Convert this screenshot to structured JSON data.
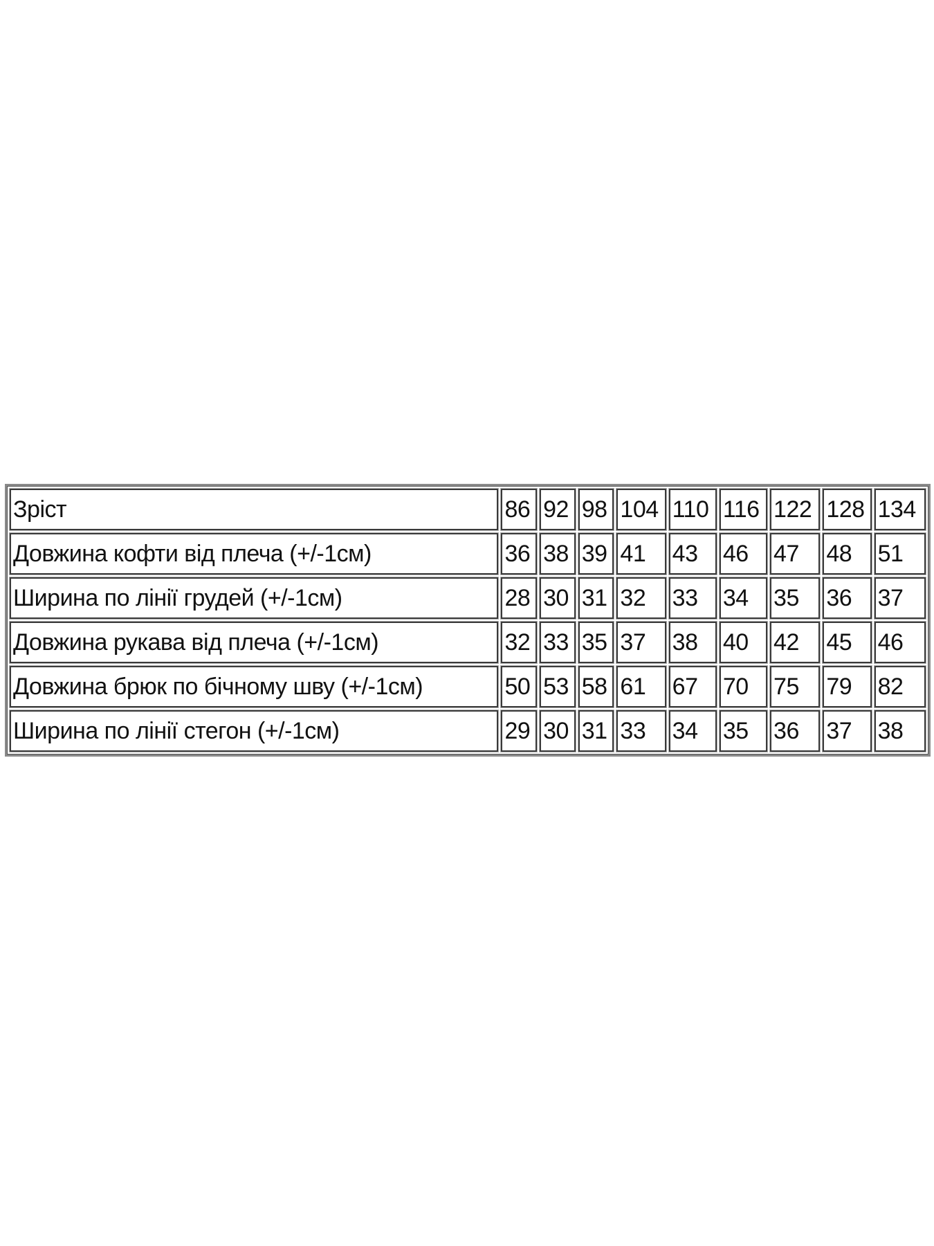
{
  "table": {
    "header": {
      "label": "Зріст",
      "sizes": [
        "86",
        "92",
        "98",
        "104",
        "110",
        "116",
        "122",
        "128",
        "134"
      ]
    },
    "rows": [
      {
        "label": "Довжина кофти від плеча (+/-1см)",
        "values": [
          "36",
          "38",
          "39",
          "41",
          "43",
          "46",
          "47",
          "48",
          "51"
        ]
      },
      {
        "label": "Ширина по лінії грудей (+/-1см)",
        "values": [
          "28",
          "30",
          "31",
          "32",
          "33",
          "34",
          "35",
          "36",
          "37"
        ]
      },
      {
        "label": "Довжина рукава від плеча (+/-1см)",
        "values": [
          "32",
          "33",
          "35",
          "37",
          "38",
          "40",
          "42",
          "45",
          "46"
        ]
      },
      {
        "label": "Довжина брюк по бічному шву (+/-1см)",
        "values": [
          "50",
          "53",
          "58",
          "61",
          "67",
          "70",
          "75",
          "79",
          "82"
        ]
      },
      {
        "label": "Ширина по лінії стегон (+/-1см)",
        "values": [
          "29",
          "30",
          "31",
          "33",
          "34",
          "35",
          "36",
          "37",
          "38"
        ]
      }
    ]
  }
}
